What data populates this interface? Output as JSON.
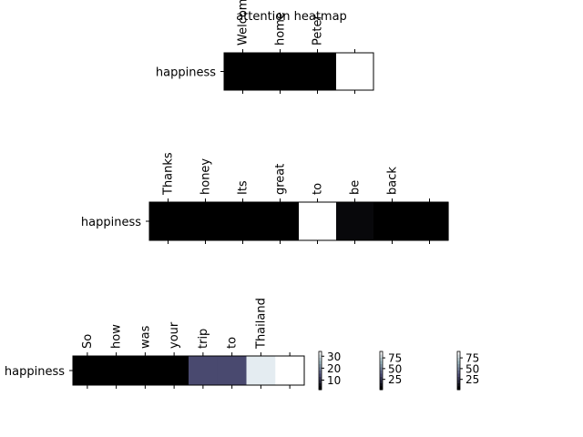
{
  "chart_data": {
    "type": "heatmap",
    "title": "attention heatmap",
    "colormap": "bone",
    "heatmaps": [
      {
        "row_label": "happiness",
        "tokens": [
          "Welcome",
          "home",
          "Peter",
          ""
        ],
        "values": [
          2,
          2,
          2,
          34
        ],
        "vmin": 2,
        "vmax": 34
      },
      {
        "row_label": "happiness",
        "tokens": [
          "Thanks",
          "honey",
          "Its",
          "great",
          "to",
          "be",
          "back",
          ""
        ],
        "values": [
          1,
          1,
          1,
          1,
          90,
          4,
          1,
          1
        ],
        "vmin": 1,
        "vmax": 90
      },
      {
        "row_label": "happiness",
        "tokens": [
          "So",
          "how",
          "was",
          "your",
          "trip",
          "to",
          "Thailand",
          ""
        ],
        "values": [
          1,
          1,
          1,
          1,
          30,
          30,
          83,
          90
        ],
        "vmin": 1,
        "vmax": 90
      }
    ],
    "colorbars": [
      {
        "ticks": [
          "10",
          "20",
          "30"
        ]
      },
      {
        "ticks": [
          "25",
          "50",
          "75"
        ]
      },
      {
        "ticks": [
          "25",
          "50",
          "75"
        ]
      }
    ]
  }
}
